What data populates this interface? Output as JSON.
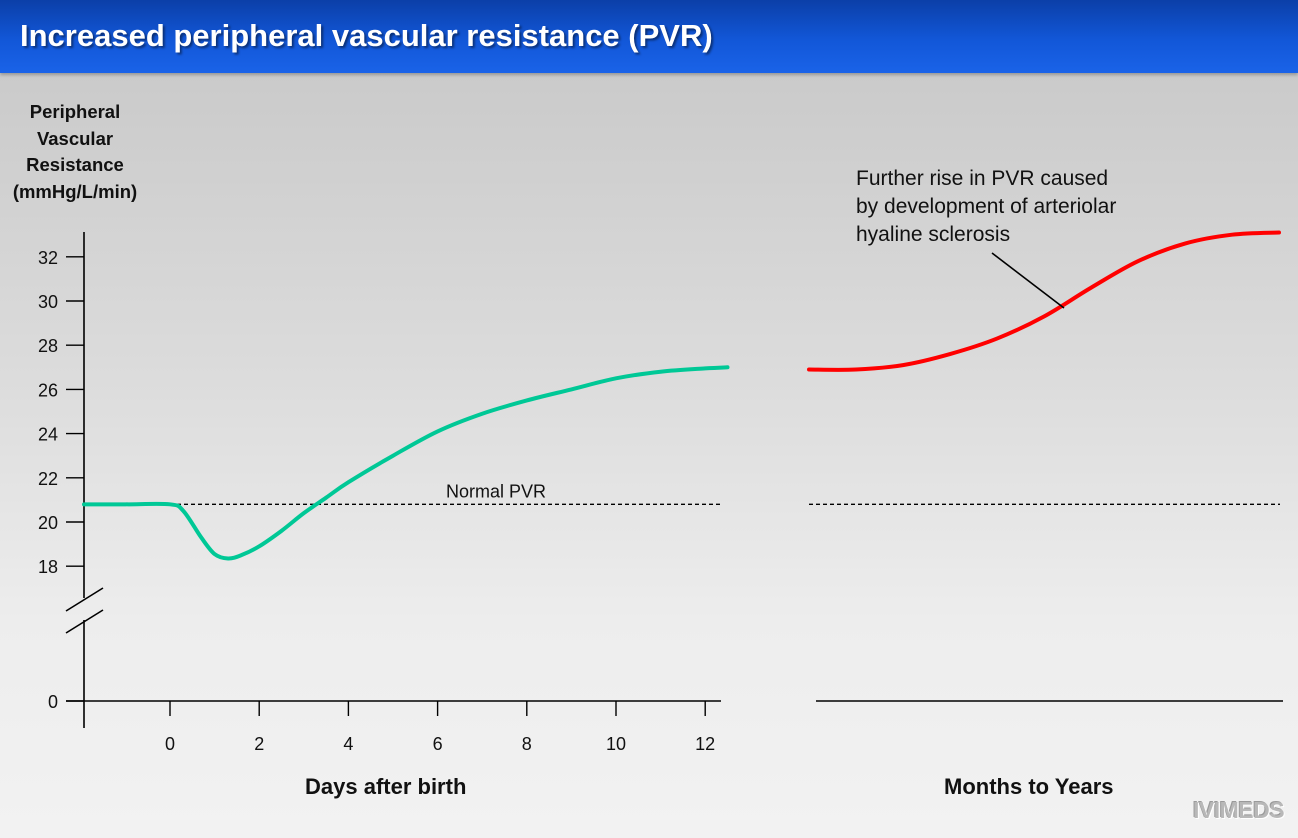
{
  "header": {
    "title": "Increased peripheral vascular resistance (PVR)"
  },
  "chart_data": [
    {
      "type": "line",
      "ylabel_lines": [
        "Peripheral",
        "Vascular",
        "Resistance",
        "(mmHg/L/min)"
      ],
      "xlabel": "Days after birth",
      "yticks": [
        0,
        18,
        20,
        22,
        24,
        26,
        28,
        30,
        32
      ],
      "xticks": [
        0,
        2,
        4,
        6,
        8,
        10,
        12
      ],
      "xlim": [
        -2,
        12.5
      ],
      "ylim": [
        0,
        33
      ],
      "axis_break": true,
      "reference_line": {
        "label": "Normal PVR",
        "value": 20.8
      },
      "series": [
        {
          "color": "#00c896",
          "x": [
            -2,
            -1,
            0,
            0.3,
            0.7,
            1.0,
            1.3,
            1.6,
            2.0,
            2.5,
            3.0,
            3.5,
            4.0,
            5.0,
            6.0,
            7.0,
            8.0,
            9.0,
            10.0,
            11.0,
            12.0,
            12.5
          ],
          "y": [
            20.8,
            20.8,
            20.8,
            20.5,
            19.3,
            18.55,
            18.35,
            18.5,
            18.9,
            19.6,
            20.4,
            21.1,
            21.8,
            23.0,
            24.1,
            24.9,
            25.5,
            26.0,
            26.5,
            26.8,
            26.95,
            27.0
          ]
        }
      ]
    },
    {
      "type": "line",
      "xlabel": "Months to Years",
      "reference_line": {
        "value": 20.8
      },
      "annotation_lines": [
        "Further rise in PVR caused",
        "by development of arteriolar",
        "hyaline sclerosis"
      ],
      "series": [
        {
          "color": "#ff0000",
          "x": [
            0,
            0.1,
            0.2,
            0.3,
            0.4,
            0.5,
            0.6,
            0.7,
            0.8,
            0.9,
            1.0
          ],
          "y": [
            26.9,
            26.9,
            27.1,
            27.6,
            28.3,
            29.3,
            30.6,
            31.8,
            32.6,
            33.0,
            33.1
          ]
        }
      ]
    }
  ],
  "logo": "IVIMEDS"
}
